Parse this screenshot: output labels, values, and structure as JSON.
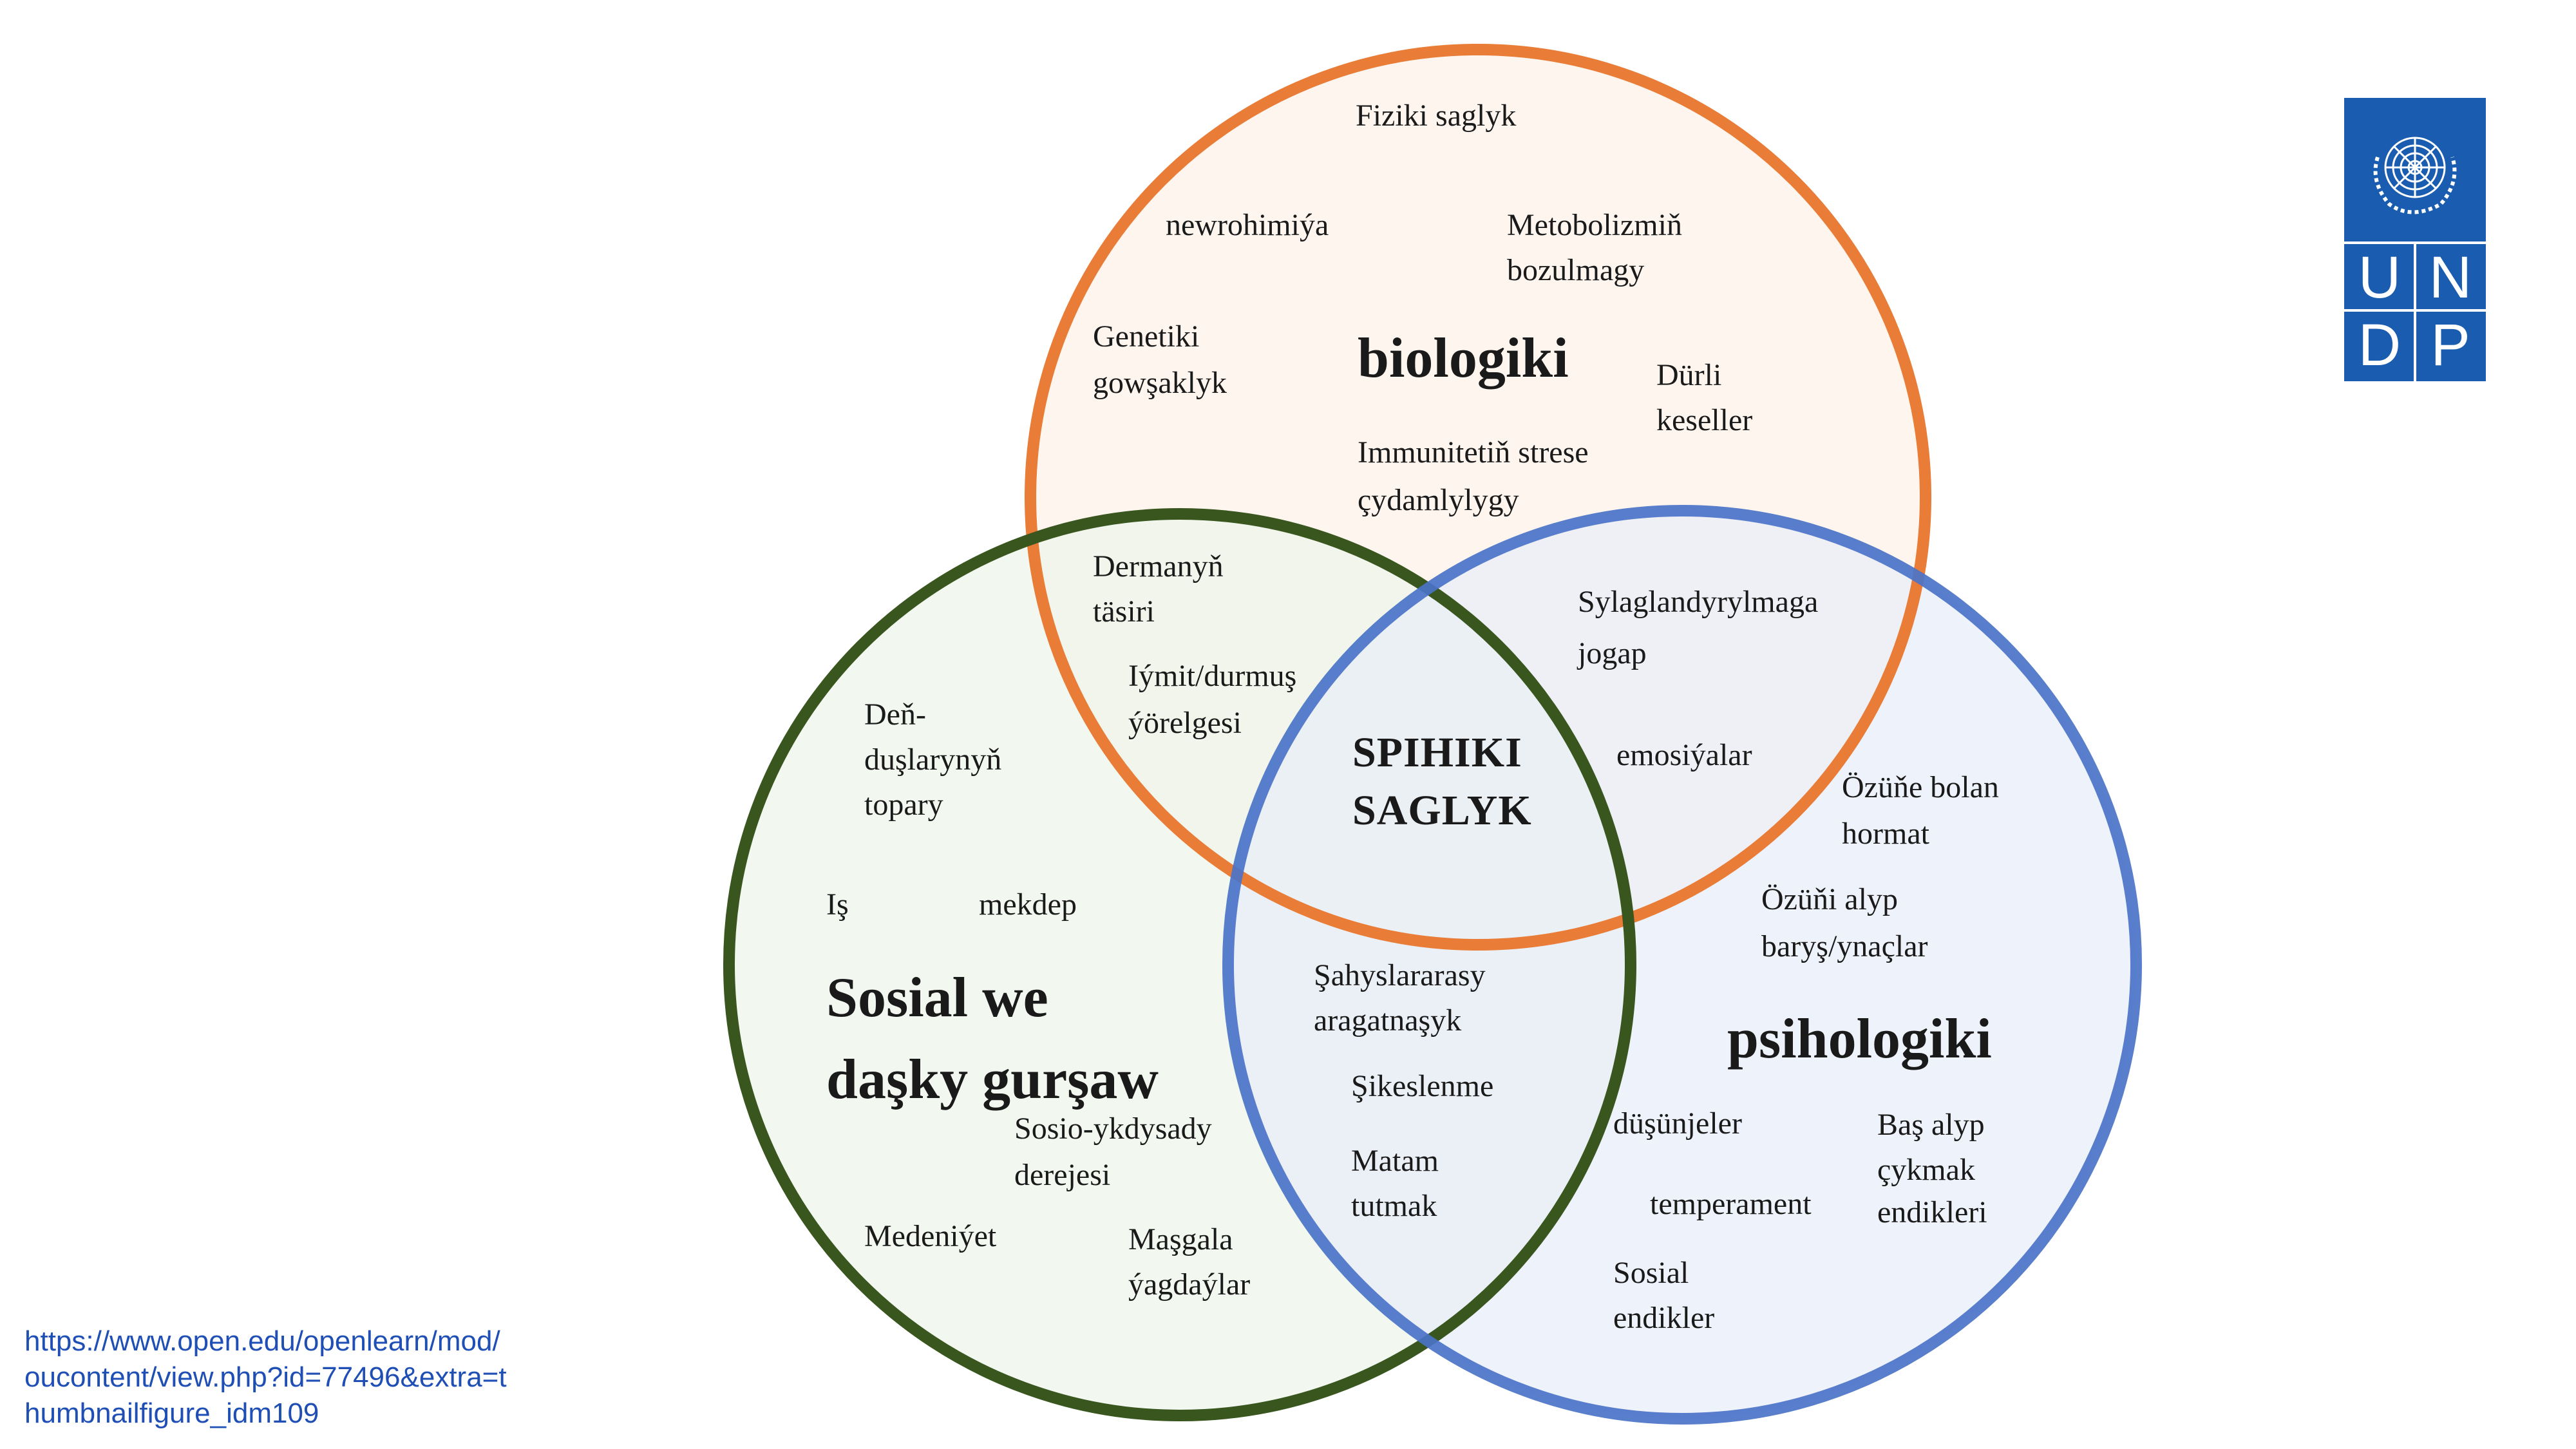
{
  "diagram": {
    "circles": [
      {
        "name": "biologiki",
        "color": "#E97C36",
        "fill": "#FDF1EA"
      },
      {
        "name": "Sosial we daşky gurşaw",
        "color": "#38561E",
        "fill": "#EEF4EA"
      },
      {
        "name": "psihologiki",
        "color": "#4A73C8",
        "fill": "#E8EDF8"
      }
    ],
    "center": {
      "line1": "SPIHIKI",
      "line2": "SAGLYK"
    },
    "biological": {
      "title": "biologiki",
      "items": {
        "fiziki": "Fiziki saglyk",
        "newro": "newrohimiýa",
        "metabolism_1": "Metobolizmiň",
        "metabolism_2": "bozulmagy",
        "genetic_1": "Genetiki",
        "genetic_2": "gowşaklyk",
        "diseases_1": "Dürli",
        "diseases_2": "keseller",
        "immunity_1": "Immunitetiň strese",
        "immunity_2": "çydamlylygy"
      }
    },
    "bio_social": {
      "drug_1": "Dermanyň",
      "drug_2": "täsiri",
      "food_1": "Iýmit/durmuş",
      "food_2": "ýörelgesi"
    },
    "bio_psych": {
      "meds_1": "Sylaglandyrylmaga",
      "meds_2": "jogap",
      "emotions": "emosiýalar"
    },
    "social": {
      "title_1": "Sosial we",
      "title_2": "daşky gurşaw",
      "items": {
        "peers_1": "Deň-",
        "peers_2": "duşlarynyň",
        "peers_3": "topary",
        "work": "Iş",
        "school": "mekdep",
        "ses_1": "Sosio-ykdysady",
        "ses_2": "derejesi",
        "culture": "Medeniýet",
        "family_1": "Maşgala",
        "family_2": "ýagdaýlar"
      }
    },
    "social_psych": {
      "interpersonal_1": "Şahyslararasy",
      "interpersonal_2": "aragatnaşyk",
      "loss": "Şikeslenme",
      "grief_1": "Matam",
      "grief_2": "tutmak"
    },
    "psychological": {
      "title": "psihologiki",
      "items": {
        "selfesteem_1": "Özüňe bolan",
        "selfesteem_2": "hormat",
        "coping_1": "Özüňi alyp",
        "coping_2": "baryş/ynaçlar",
        "thoughts": "düşünjeler",
        "temperament": "temperament",
        "coping_skills_1": "Baş alyp",
        "coping_skills_2": "çykmak",
        "coping_skills_3": "endikleri",
        "social_skills_1": "Sosial",
        "social_skills_2": "endikler"
      }
    }
  },
  "logo": {
    "text": "UNDP",
    "letters": [
      "U",
      "N",
      "D",
      "P"
    ],
    "color": "#1A5CB0"
  },
  "source": {
    "text": "https://www.open.edu/openlearn/mod/oucontent/view.php?id=77496&extra=thumbnailfigure_idm109"
  }
}
